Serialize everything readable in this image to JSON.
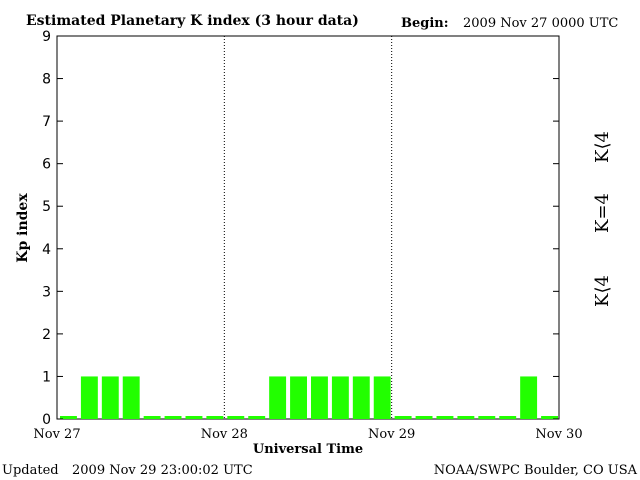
{
  "header": {
    "title": "Estimated Planetary K index (3 hour data)",
    "begin_label": "Begin:",
    "begin_value": "2009 Nov 27 0000 UTC"
  },
  "footer": {
    "updated_label": "Updated",
    "updated_value": "2009 Nov 29 23:00:02 UTC",
    "credit": "NOAA/SWPC Boulder, CO USA"
  },
  "legend": {
    "items": [
      {
        "label": "K⟨4",
        "color": "#ff2200"
      },
      {
        "label": "K=4",
        "color": "#ffcc00"
      },
      {
        "label": "K⟨4",
        "color": "#22ff00"
      }
    ]
  },
  "chart_data": {
    "type": "bar",
    "ylabel": "Kp index",
    "xlabel": "Universal Time",
    "ylim": [
      0,
      9
    ],
    "yticks": [
      "0",
      "1",
      "2",
      "3",
      "4",
      "5",
      "6",
      "7",
      "8",
      "9"
    ],
    "xticks": [
      "Nov 27",
      "Nov 28",
      "Nov 29",
      "Nov 30"
    ],
    "bar_color": "#22ff00",
    "values": [
      0,
      1,
      1,
      1,
      0,
      0,
      0,
      0,
      0,
      0,
      1,
      1,
      1,
      1,
      1,
      1,
      0,
      0,
      0,
      0,
      0,
      0,
      1,
      0
    ]
  }
}
